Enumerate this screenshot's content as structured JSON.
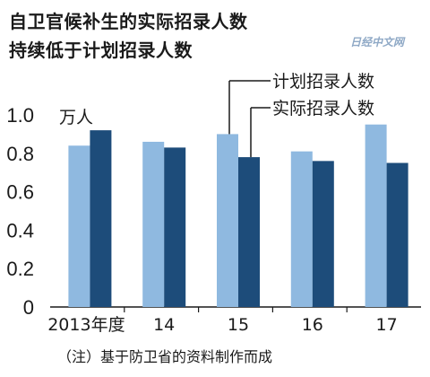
{
  "watermark": "日经中文网",
  "note": "（注）基于防卫省的资料制作而成",
  "colors": {
    "planned": "#8fb9e0",
    "actual": "#1d4c7a",
    "axis": "#1a1a1a"
  },
  "chart_data": {
    "type": "bar",
    "title": [
      "自卫官候补生的实际招录人数",
      "持续低于计划招录人数"
    ],
    "unit_label": "万人",
    "categories": [
      "2013年度",
      "14",
      "15",
      "16",
      "17"
    ],
    "series": [
      {
        "name": "计划招录人数",
        "values": [
          0.84,
          0.86,
          0.9,
          0.81,
          0.95
        ]
      },
      {
        "name": "实际招录人数",
        "values": [
          0.92,
          0.83,
          0.78,
          0.76,
          0.75
        ]
      }
    ],
    "ylim": [
      0,
      1.0
    ],
    "yticks": [
      "0",
      "0.2",
      "0.4",
      "0.6",
      "0.8",
      "1.0"
    ],
    "legend_placement": "top-right, callout lines to the 2015 bars"
  }
}
